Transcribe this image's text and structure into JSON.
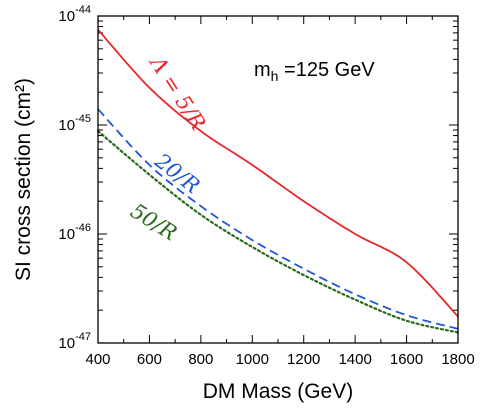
{
  "chart_data": {
    "type": "line",
    "xlabel": "DM Mass (GeV)",
    "ylabel": "SI cross section (cm²)",
    "xlim": [
      400,
      1800
    ],
    "ylim_log10": [
      -47,
      -44
    ],
    "yscale": "log",
    "xticks": [
      "400",
      "600",
      "800",
      "1000",
      "1200",
      "1400",
      "1600",
      "1800"
    ],
    "xtick_values": [
      400,
      600,
      800,
      1000,
      1200,
      1400,
      1600,
      1800
    ],
    "yticks_exp": [
      "-44",
      "-45",
      "-46",
      "-47"
    ],
    "ytick_base": "10",
    "annotation_main": "m",
    "annotation_sub": "h",
    "annotation_rest": " =125 GeV",
    "series": [
      {
        "label": "Λ = 5/R",
        "color": "#e8262a",
        "style": "solid",
        "x": [
          400,
          600,
          800,
          1000,
          1200,
          1400,
          1600,
          1800
        ],
        "y": [
          7.5e-45,
          2.2e-45,
          8.8e-46,
          4.3e-46,
          2e-46,
          1e-46,
          5.5e-47,
          1.75e-47
        ]
      },
      {
        "label": "20/R",
        "color": "#1f55d8",
        "style": "dashed",
        "x": [
          400,
          600,
          800,
          1000,
          1200,
          1400,
          1600,
          1800
        ],
        "y": [
          1.4e-45,
          4.3e-46,
          1.8e-46,
          8.8e-47,
          4.8e-47,
          2.8e-47,
          1.8e-47,
          1.35e-47
        ]
      },
      {
        "label": "50/R",
        "color": "#2a6a1a",
        "style": "dotted",
        "x": [
          400,
          600,
          800,
          1000,
          1200,
          1400,
          1600,
          1800
        ],
        "y": [
          8.8e-46,
          3.5e-46,
          1.5e-46,
          7.6e-47,
          4.2e-47,
          2.5e-47,
          1.6e-47,
          1.25e-47
        ]
      }
    ]
  }
}
